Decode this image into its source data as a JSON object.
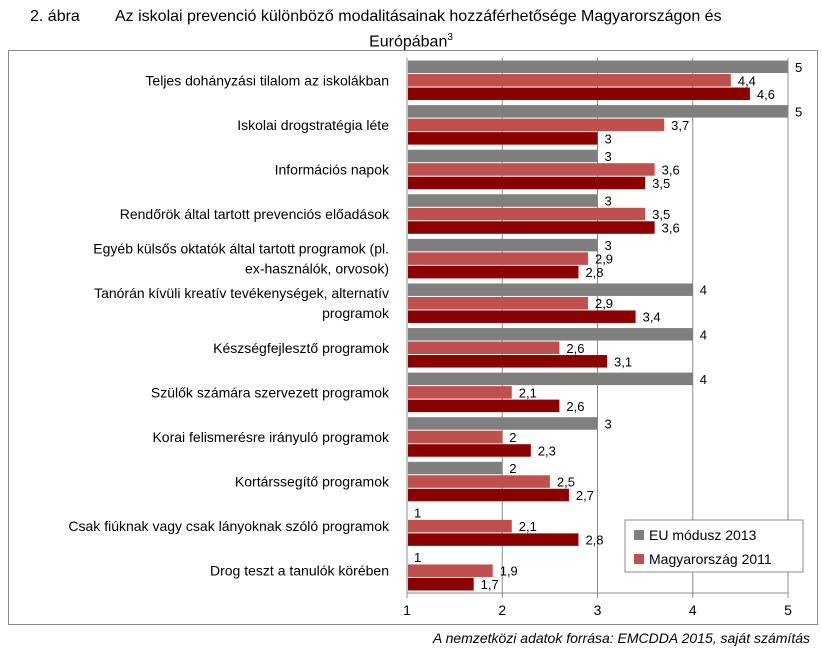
{
  "figure_number": "2. ábra",
  "title_line1": "Az iskolai prevenció különböző modalitásainak hozzáférhetősége Magyarországon és",
  "title_line2": "Európában",
  "title_footnote": "3",
  "source": "A nemzetközi adatok forrása: EMCDDA 2015, saját számítás",
  "chart_data": {
    "type": "bar",
    "orientation": "horizontal",
    "categories": [
      [
        "Teljes dohányzási tilalom az iskolákban"
      ],
      [
        "Iskolai drogstratégia léte"
      ],
      [
        "Információs napok"
      ],
      [
        "Rendőrök által tartott prevenciós előadások"
      ],
      [
        "Egyéb külsős oktatók által tartott programok (pl.",
        "ex-használók, orvosok)"
      ],
      [
        "Tanórán kívüli kreatív tevékenységek, alternatív",
        "programok"
      ],
      [
        "Készségfejlesztő programok"
      ],
      [
        "Szülők számára szervezett programok"
      ],
      [
        "Korai felismerésre irányuló programok"
      ],
      [
        "Kortárssegítő programok"
      ],
      [
        "Csak fiúknak vagy csak lányoknak szóló programok"
      ],
      [
        "Drog teszt a tanulók körében"
      ]
    ],
    "series": [
      {
        "name": "EU módusz 2013",
        "color": "#7f7f7f",
        "values": [
          5,
          5,
          3,
          3,
          3,
          4,
          4,
          4,
          3,
          2,
          1,
          1
        ],
        "labels": [
          "5",
          "5",
          "3",
          "3",
          "3",
          "4",
          "4",
          "4",
          "3",
          "2",
          "1",
          "1"
        ]
      },
      {
        "name": "Magyarország 2011",
        "color": "#c0504d",
        "values": [
          4.4,
          3.7,
          3.6,
          3.5,
          2.9,
          2.9,
          2.6,
          2.1,
          2,
          2.5,
          2.1,
          1.9
        ],
        "labels": [
          "4,4",
          "3,7",
          "3,6",
          "3,5",
          "2,9",
          "2,9",
          "2,6",
          "2,1",
          "2",
          "2,5",
          "2,1",
          "1,9"
        ]
      },
      {
        "name": "",
        "color": "#8b0000",
        "values": [
          4.6,
          3,
          3.5,
          3.6,
          2.8,
          3.4,
          3.1,
          2.6,
          2.3,
          2.7,
          2.8,
          1.7
        ],
        "labels": [
          "4,6",
          "3",
          "3,5",
          "3,6",
          "2,8",
          "3,4",
          "3,1",
          "2,6",
          "2,3",
          "2,7",
          "2,8",
          "1,7"
        ]
      }
    ],
    "xlim": [
      1,
      5
    ],
    "xticks": [
      "1",
      "2",
      "3",
      "4",
      "5"
    ],
    "grid": true,
    "legend": "bottom-right"
  }
}
